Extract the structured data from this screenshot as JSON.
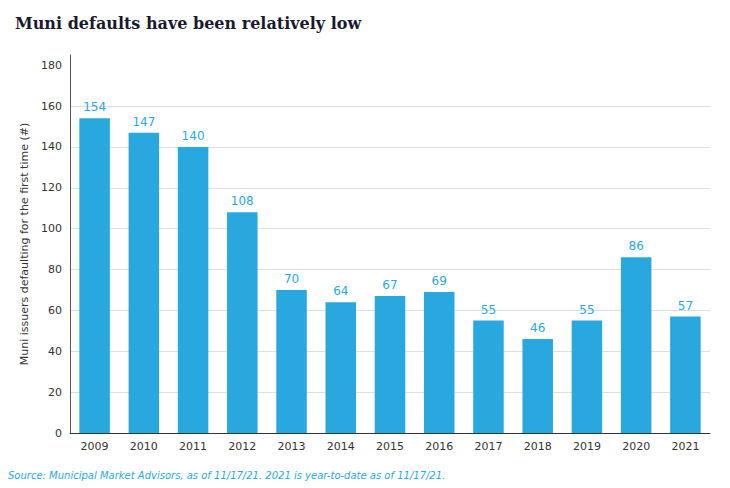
{
  "chart_data": {
    "type": "bar",
    "title": "Muni defaults have been relatively low",
    "ylabel": "Muni issuers defaulting for the first time (#)",
    "annotation": "Source: Municipal Market Advisors, as of 11/17/21. 2021 is year-to-date as of 11/17/21.",
    "categories": [
      "2009",
      "2010",
      "2011",
      "2012",
      "2013",
      "2014",
      "2015",
      "2016",
      "2017",
      "2018",
      "2019",
      "2020",
      "2021"
    ],
    "values": [
      154,
      147,
      140,
      108,
      70,
      64,
      67,
      69,
      55,
      46,
      55,
      86,
      57
    ],
    "color": "#29a8e0",
    "data_labels": true,
    "ylim": [
      0,
      185
    ],
    "yticks": [
      0,
      20,
      40,
      60,
      80,
      100,
      120,
      140,
      160,
      180
    ],
    "grid": true
  }
}
